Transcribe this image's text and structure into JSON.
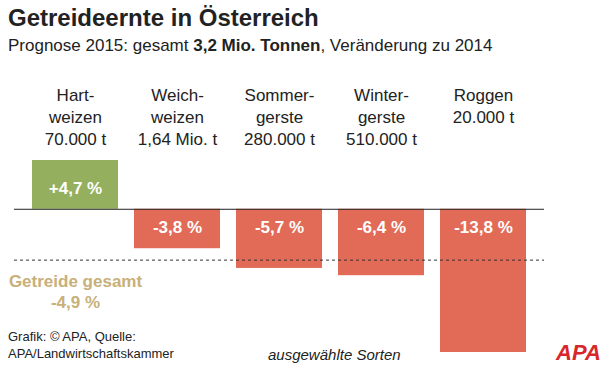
{
  "chart_data": {
    "type": "bar",
    "title": "Getreideernte in Österreich",
    "subtitle": "Prognose 2015: gesamt 3,2 Mio. Tonnen, Veränderung zu 2014",
    "subtitle_bold": "3,2 Mio. Tonnen",
    "categories": [
      "Hart-\nweizen",
      "Weich-\nweizen",
      "Sommer-\ngerste",
      "Winter-\ngerste",
      "Roggen"
    ],
    "tonnage_labels": [
      "70.000 t",
      "1,64 Mio. t",
      "280.000 t",
      "510.000 t",
      "20.000 t"
    ],
    "values": [
      4.7,
      -3.8,
      -5.7,
      -6.4,
      -13.8
    ],
    "value_labels": [
      "+4,7 %",
      "-3,8 %",
      "-5,7 %",
      "-6,4 %",
      "-13,8 %"
    ],
    "colors": [
      "#94b05f",
      "#e26b57",
      "#e26b57",
      "#e26b57",
      "#e26b57"
    ],
    "total": {
      "label": "Getreide gesamt",
      "value": -4.9,
      "value_label": "-4,9 %"
    },
    "ylim": [
      -13.8,
      4.7
    ],
    "yticks": [],
    "grid": false,
    "tick_labels": false,
    "data_labels": true,
    "caption": "Grafik: © APA, Quelle: APA/Landwirtschaftskammer",
    "note": "ausgewählte Sorten",
    "logo": "APA"
  }
}
